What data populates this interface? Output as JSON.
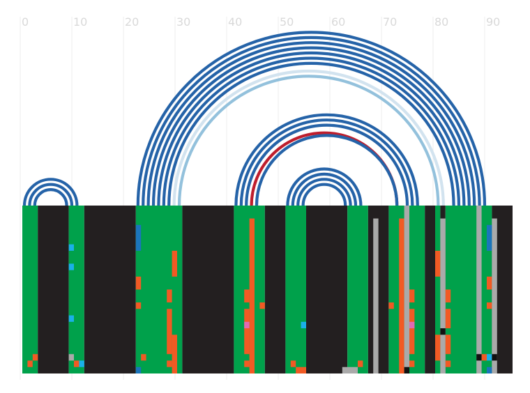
{
  "chart_data": {
    "type": "arc-alignment",
    "x_ticks": [
      "0",
      "10",
      "20",
      "30",
      "40",
      "50",
      "60",
      "70",
      "80",
      "90"
    ],
    "xlim": [
      0,
      95
    ],
    "n_rows": 26,
    "colors": {
      "paired": "#00a14b",
      "unpaired": "#231f20",
      "arc_strong": "#2563a8",
      "arc_medium": "#93c1dc",
      "arc_weak": "#d2e3ef",
      "arc_red": "#be1e2d",
      "orange": "#f15a24",
      "gray": "#aaaaaa",
      "cyan": "#1ab0e8",
      "blue": "#1b75bb",
      "pink": "#e06ab2",
      "black": "#111111"
    },
    "segments": [
      {
        "from": 0,
        "to": 3,
        "type": "paired"
      },
      {
        "from": 3,
        "to": 9,
        "type": "unpaired"
      },
      {
        "from": 9,
        "to": 12,
        "type": "paired"
      },
      {
        "from": 12,
        "to": 22,
        "type": "unpaired"
      },
      {
        "from": 22,
        "to": 31,
        "type": "paired"
      },
      {
        "from": 31,
        "to": 41,
        "type": "unpaired"
      },
      {
        "from": 41,
        "to": 47,
        "type": "paired"
      },
      {
        "from": 47,
        "to": 51,
        "type": "unpaired"
      },
      {
        "from": 51,
        "to": 55,
        "type": "paired"
      },
      {
        "from": 55,
        "to": 63,
        "type": "unpaired"
      },
      {
        "from": 63,
        "to": 67,
        "type": "paired"
      },
      {
        "from": 67,
        "to": 71,
        "type": "unpaired"
      },
      {
        "from": 71,
        "to": 78,
        "type": "paired"
      },
      {
        "from": 78,
        "to": 80,
        "type": "unpaired"
      },
      {
        "from": 80,
        "to": 81,
        "type": "paired"
      },
      {
        "from": 81,
        "to": 82,
        "type": "unpaired"
      },
      {
        "from": 82,
        "to": 91,
        "type": "paired"
      },
      {
        "from": 91,
        "to": 95,
        "type": "unpaired"
      }
    ],
    "arcs": [
      {
        "i": 0,
        "j": 11,
        "c": "arc_strong"
      },
      {
        "i": 1,
        "j": 10,
        "c": "arc_strong"
      },
      {
        "i": 2,
        "j": 9,
        "c": "arc_strong"
      },
      {
        "i": 22,
        "j": 90,
        "c": "arc_strong"
      },
      {
        "i": 23,
        "j": 89,
        "c": "arc_strong"
      },
      {
        "i": 24,
        "j": 88,
        "c": "arc_strong"
      },
      {
        "i": 25,
        "j": 87,
        "c": "arc_strong"
      },
      {
        "i": 26,
        "j": 86,
        "c": "arc_strong"
      },
      {
        "i": 27,
        "j": 85,
        "c": "arc_strong"
      },
      {
        "i": 28,
        "j": 84,
        "c": "arc_strong"
      },
      {
        "i": 29,
        "j": 82,
        "c": "arc_weak"
      },
      {
        "i": 30,
        "j": 81,
        "c": "arc_medium"
      },
      {
        "i": 41,
        "j": 77,
        "c": "arc_strong"
      },
      {
        "i": 42,
        "j": 76,
        "c": "arc_strong"
      },
      {
        "i": 43,
        "j": 75,
        "c": "arc_strong"
      },
      {
        "i": 44,
        "j": 73,
        "c": "arc_red"
      },
      {
        "i": 45,
        "j": 73,
        "c": "arc_strong"
      },
      {
        "i": 51,
        "j": 66,
        "c": "arc_strong"
      },
      {
        "i": 52,
        "j": 65,
        "c": "arc_strong"
      },
      {
        "i": 53,
        "j": 64,
        "c": "arc_strong"
      },
      {
        "i": 54,
        "j": 63,
        "c": "arc_strong"
      }
    ],
    "columns": [
      {
        "x": 2,
        "w": 1,
        "c": "orange",
        "r0": 23,
        "r1": 24
      },
      {
        "x": 1,
        "w": 1,
        "c": "orange",
        "r0": 24,
        "r1": 25
      },
      {
        "x": 9,
        "w": 1,
        "c": "cyan",
        "r0": 6,
        "r1": 7
      },
      {
        "x": 9,
        "w": 1,
        "c": "cyan",
        "r0": 9,
        "r1": 10
      },
      {
        "x": 9,
        "w": 1,
        "c": "cyan",
        "r0": 17,
        "r1": 18
      },
      {
        "x": 9,
        "w": 1,
        "c": "gray",
        "r0": 23,
        "r1": 24
      },
      {
        "x": 10,
        "w": 1,
        "c": "orange",
        "r0": 24,
        "r1": 25
      },
      {
        "x": 11,
        "w": 1,
        "c": "cyan",
        "r0": 24,
        "r1": 25
      },
      {
        "x": 22,
        "w": 1,
        "c": "blue",
        "r0": 3,
        "r1": 7
      },
      {
        "x": 22,
        "w": 1,
        "c": "orange",
        "r0": 11,
        "r1": 13
      },
      {
        "x": 22,
        "w": 1,
        "c": "orange",
        "r0": 15,
        "r1": 16
      },
      {
        "x": 23,
        "w": 1,
        "c": "orange",
        "r0": 23,
        "r1": 24
      },
      {
        "x": 22,
        "w": 1,
        "c": "blue",
        "r0": 25,
        "r1": 26
      },
      {
        "x": 29,
        "w": 1,
        "c": "orange",
        "r0": 7,
        "r1": 11
      },
      {
        "x": 29,
        "w": 1,
        "c": "orange",
        "r0": 20,
        "r1": 24
      },
      {
        "x": 29,
        "w": 1,
        "c": "orange",
        "r0": 24,
        "r1": 26
      },
      {
        "x": 28,
        "w": 1,
        "c": "orange",
        "r0": 13,
        "r1": 15
      },
      {
        "x": 28,
        "w": 1,
        "c": "orange",
        "r0": 16,
        "r1": 23
      },
      {
        "x": 28,
        "w": 1,
        "c": "orange",
        "r0": 24,
        "r1": 25
      },
      {
        "x": 44,
        "w": 1,
        "c": "orange",
        "r0": 2,
        "r1": 26
      },
      {
        "x": 43,
        "w": 1,
        "c": "orange",
        "r0": 13,
        "r1": 15
      },
      {
        "x": 43,
        "w": 1,
        "c": "orange",
        "r0": 16,
        "r1": 23
      },
      {
        "x": 43,
        "w": 1,
        "c": "pink",
        "r0": 18,
        "r1": 19
      },
      {
        "x": 43,
        "w": 1,
        "c": "orange",
        "r0": 24,
        "r1": 25
      },
      {
        "x": 46,
        "w": 1,
        "c": "orange",
        "r0": 15,
        "r1": 16
      },
      {
        "x": 52,
        "w": 1,
        "c": "orange",
        "r0": 24,
        "r1": 25
      },
      {
        "x": 53,
        "w": 2,
        "c": "orange",
        "r0": 25,
        "r1": 26
      },
      {
        "x": 54,
        "w": 1,
        "c": "cyan",
        "r0": 18,
        "r1": 19
      },
      {
        "x": 62,
        "w": 3,
        "c": "gray",
        "r0": 25,
        "r1": 26
      },
      {
        "x": 65,
        "w": 1,
        "c": "orange",
        "r0": 24,
        "r1": 25
      },
      {
        "x": 68,
        "w": 1,
        "c": "gray",
        "r0": 2,
        "r1": 26
      },
      {
        "x": 73,
        "w": 1,
        "c": "orange",
        "r0": 2,
        "r1": 26
      },
      {
        "x": 74,
        "w": 1,
        "c": "gray",
        "r0": 0,
        "r1": 26
      },
      {
        "x": 74,
        "w": 1,
        "c": "black",
        "r0": 25,
        "r1": 26
      },
      {
        "x": 75,
        "w": 1,
        "c": "orange",
        "r0": 13,
        "r1": 15
      },
      {
        "x": 75,
        "w": 1,
        "c": "orange",
        "r0": 16,
        "r1": 23
      },
      {
        "x": 75,
        "w": 1,
        "c": "pink",
        "r0": 18,
        "r1": 19
      },
      {
        "x": 75,
        "w": 1,
        "c": "orange",
        "r0": 24,
        "r1": 25
      },
      {
        "x": 71,
        "w": 1,
        "c": "orange",
        "r0": 15,
        "r1": 16
      },
      {
        "x": 80,
        "w": 1,
        "c": "orange",
        "r0": 7,
        "r1": 11
      },
      {
        "x": 80,
        "w": 1,
        "c": "orange",
        "r0": 20,
        "r1": 24
      },
      {
        "x": 81,
        "w": 1,
        "c": "gray",
        "r0": 2,
        "r1": 26
      },
      {
        "x": 81,
        "w": 1,
        "c": "black",
        "r0": 19,
        "r1": 20
      },
      {
        "x": 82,
        "w": 1,
        "c": "orange",
        "r0": 13,
        "r1": 15
      },
      {
        "x": 82,
        "w": 1,
        "c": "orange",
        "r0": 16,
        "r1": 19
      },
      {
        "x": 82,
        "w": 1,
        "c": "orange",
        "r0": 20,
        "r1": 23
      },
      {
        "x": 82,
        "w": 1,
        "c": "orange",
        "r0": 24,
        "r1": 25
      },
      {
        "x": 88,
        "w": 1,
        "c": "gray",
        "r0": 0,
        "r1": 26
      },
      {
        "x": 88,
        "w": 1,
        "c": "black",
        "r0": 23,
        "r1": 24
      },
      {
        "x": 89,
        "w": 1,
        "c": "orange",
        "r0": 23,
        "r1": 24
      },
      {
        "x": 90,
        "w": 1,
        "c": "blue",
        "r0": 3,
        "r1": 7
      },
      {
        "x": 90,
        "w": 1,
        "c": "orange",
        "r0": 11,
        "r1": 13
      },
      {
        "x": 90,
        "w": 1,
        "c": "orange",
        "r0": 15,
        "r1": 16
      },
      {
        "x": 90,
        "w": 1,
        "c": "cyan",
        "r0": 23,
        "r1": 24
      },
      {
        "x": 90,
        "w": 1,
        "c": "blue",
        "r0": 25,
        "r1": 26
      },
      {
        "x": 91,
        "w": 1,
        "c": "gray",
        "r0": 2,
        "r1": 26
      },
      {
        "x": 91,
        "w": 1,
        "c": "black",
        "r0": 23,
        "r1": 24
      }
    ]
  }
}
